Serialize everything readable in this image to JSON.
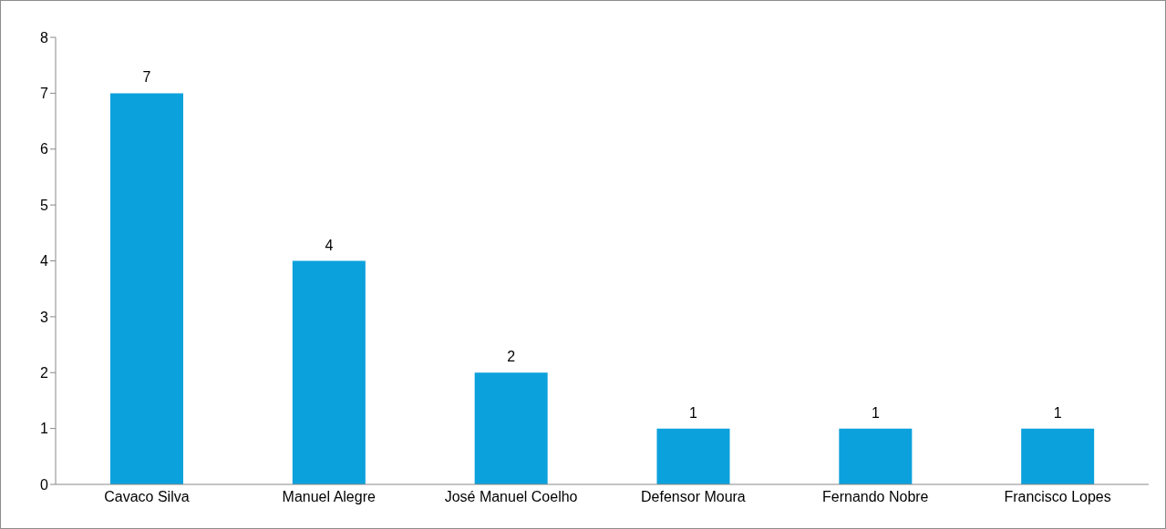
{
  "chart_data": {
    "type": "bar",
    "categories": [
      "Cavaco Silva",
      "Manuel Alegre",
      "José Manuel Coelho",
      "Defensor Moura",
      "Fernando Nobre",
      "Francisco Lopes"
    ],
    "values": [
      7,
      4,
      2,
      1,
      1,
      1
    ],
    "color": "#0ba1dc",
    "ylim": [
      0,
      8
    ],
    "yticks": [
      0,
      1,
      2,
      3,
      4,
      5,
      6,
      7,
      8
    ],
    "data_labels": true,
    "grid": false
  }
}
